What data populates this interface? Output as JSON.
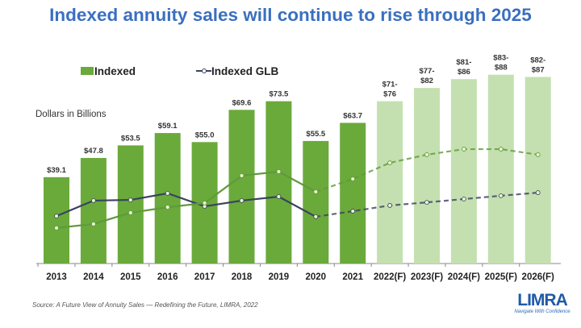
{
  "chart_data": {
    "type": "bar",
    "title": "Indexed annuity sales will continue to rise through 2025",
    "ylabel": "Dollars in Billions",
    "xlabel": "",
    "ylim": [
      0,
      100
    ],
    "grid": false,
    "legend_placement": "top",
    "categories": [
      "2013",
      "2014",
      "2015",
      "2016",
      "2017",
      "2018",
      "2019",
      "2020",
      "2021",
      "2022(F)",
      "2023(F)",
      "2024(F)",
      "2025(F)",
      "2026(F)"
    ],
    "series": [
      {
        "name": "Indexed",
        "kind": "bar",
        "values": [
          39.1,
          47.8,
          53.5,
          59.1,
          55.0,
          69.6,
          73.5,
          55.5,
          63.7,
          73.5,
          79.5,
          83.5,
          85.5,
          84.5
        ],
        "labels": [
          "$39.1",
          "$47.8",
          "$53.5",
          "$59.1",
          "$55.0",
          "$69.6",
          "$73.5",
          "$55.5",
          "$63.7",
          "$71-\n$76",
          "$77-\n$82",
          "$81-\n$86",
          "$83-\n$88",
          "$82-\n$87"
        ],
        "forecast": [
          false,
          false,
          false,
          false,
          false,
          false,
          false,
          false,
          false,
          true,
          true,
          true,
          true,
          true
        ],
        "color": "#6aaa3a",
        "forecast_color": "#c4e0b0"
      },
      {
        "name": "Indexed GLB",
        "kind": "line",
        "values": [
          21.5,
          28.5,
          28.8,
          31.8,
          25.9,
          28.5,
          30.3,
          21.2,
          23.7,
          26.3,
          27.7,
          29.2,
          30.7,
          32.1
        ],
        "color": "#3b4260"
      },
      {
        "kind": "line",
        "values": [
          16.1,
          17.9,
          23.0,
          25.5,
          27.4,
          39.8,
          41.6,
          32.5,
          38.3,
          45.6,
          49.3,
          51.8,
          51.8,
          49.3
        ],
        "color": "#5f9a3c"
      }
    ],
    "dashed_from_index": 7
  },
  "source": "Source: A Future View of Annuity Sales — Redefining the Future, LIMRA, 2022",
  "logo": {
    "text": "LIMRA",
    "tagline": "Navigate With Confidence",
    "color": "#1f5aa8"
  }
}
